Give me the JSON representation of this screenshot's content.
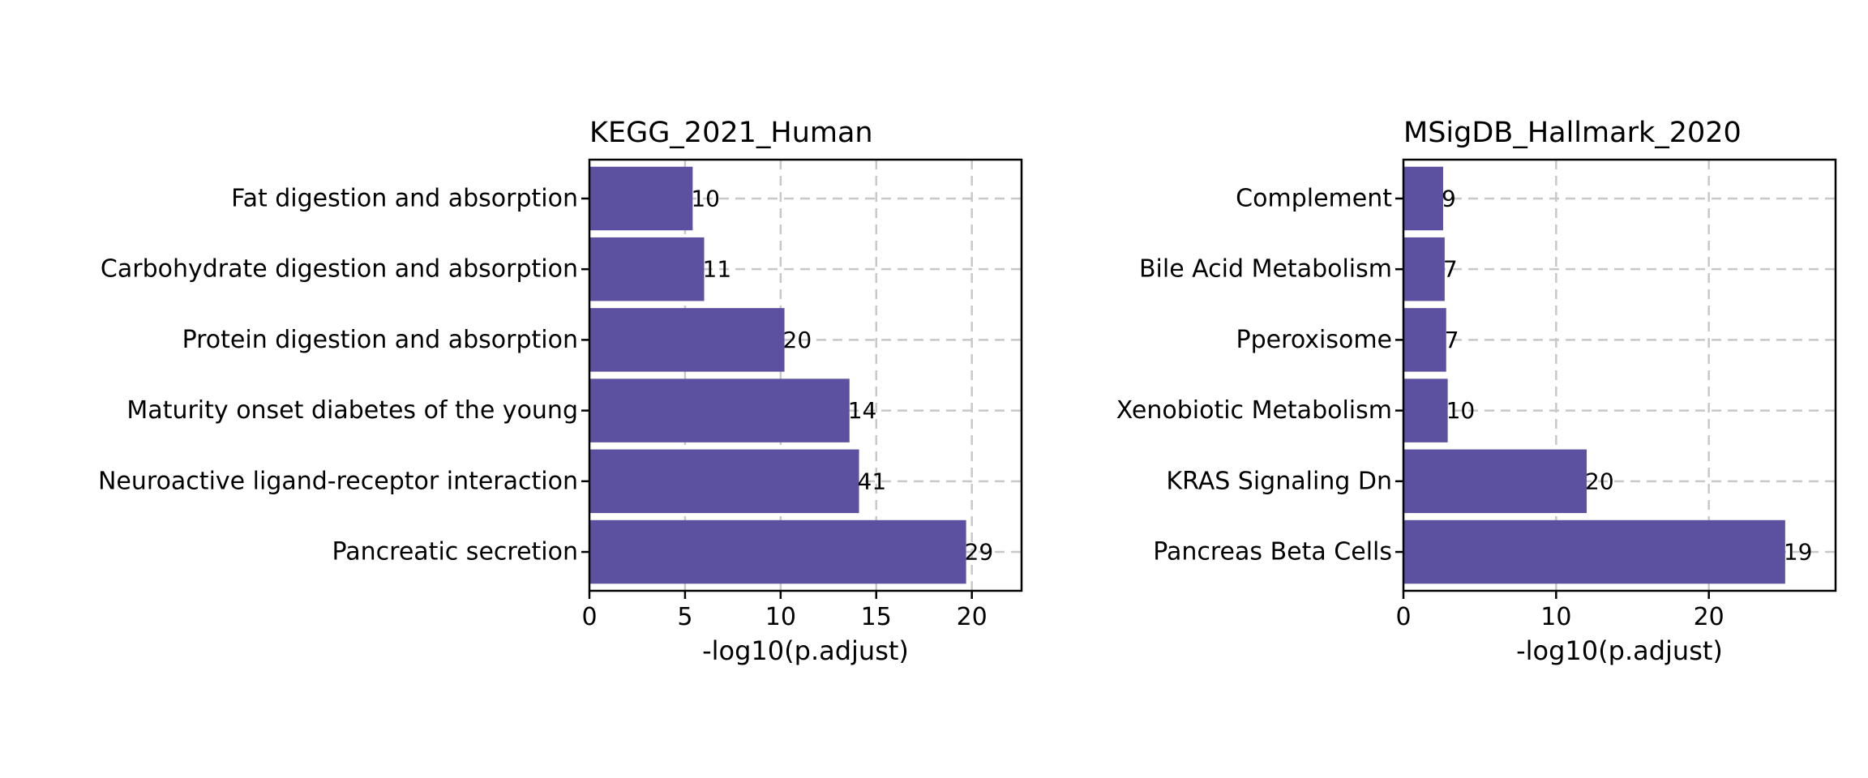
{
  "chart_data": [
    {
      "type": "bar",
      "orientation": "horizontal",
      "title": "KEGG_2021_Human",
      "xlabel": "-log10(p.adjust)",
      "xlim": [
        0,
        22.6
      ],
      "xticks": [
        0,
        5,
        10,
        15,
        20
      ],
      "grid": true,
      "bar_color": "#5c50a0",
      "categories": [
        "Fat digestion and absorption",
        "Carbohydrate digestion and absorption",
        "Protein digestion and absorption",
        "Maturity onset diabetes of the young",
        "Neuroactive ligand-receptor interaction",
        "Pancreatic secretion"
      ],
      "values": [
        5.4,
        6.0,
        10.2,
        13.6,
        14.1,
        19.7
      ],
      "bar_labels": [
        "10",
        "11",
        "20",
        "14",
        "41",
        "29"
      ]
    },
    {
      "type": "bar",
      "orientation": "horizontal",
      "title": "MSigDB_Hallmark_2020",
      "xlabel": "-log10(p.adjust)",
      "xlim": [
        0,
        28.3
      ],
      "xticks": [
        0,
        10,
        20
      ],
      "grid": true,
      "bar_color": "#5c50a0",
      "categories": [
        "Complement",
        "Bile Acid Metabolism",
        "Pperoxisome",
        "Xenobiotic Metabolism",
        "KRAS Signaling Dn",
        "Pancreas Beta Cells"
      ],
      "values": [
        2.6,
        2.7,
        2.8,
        2.9,
        12.0,
        25.0
      ],
      "bar_labels": [
        "9",
        "7",
        "7",
        "10",
        "20",
        "19"
      ]
    }
  ]
}
